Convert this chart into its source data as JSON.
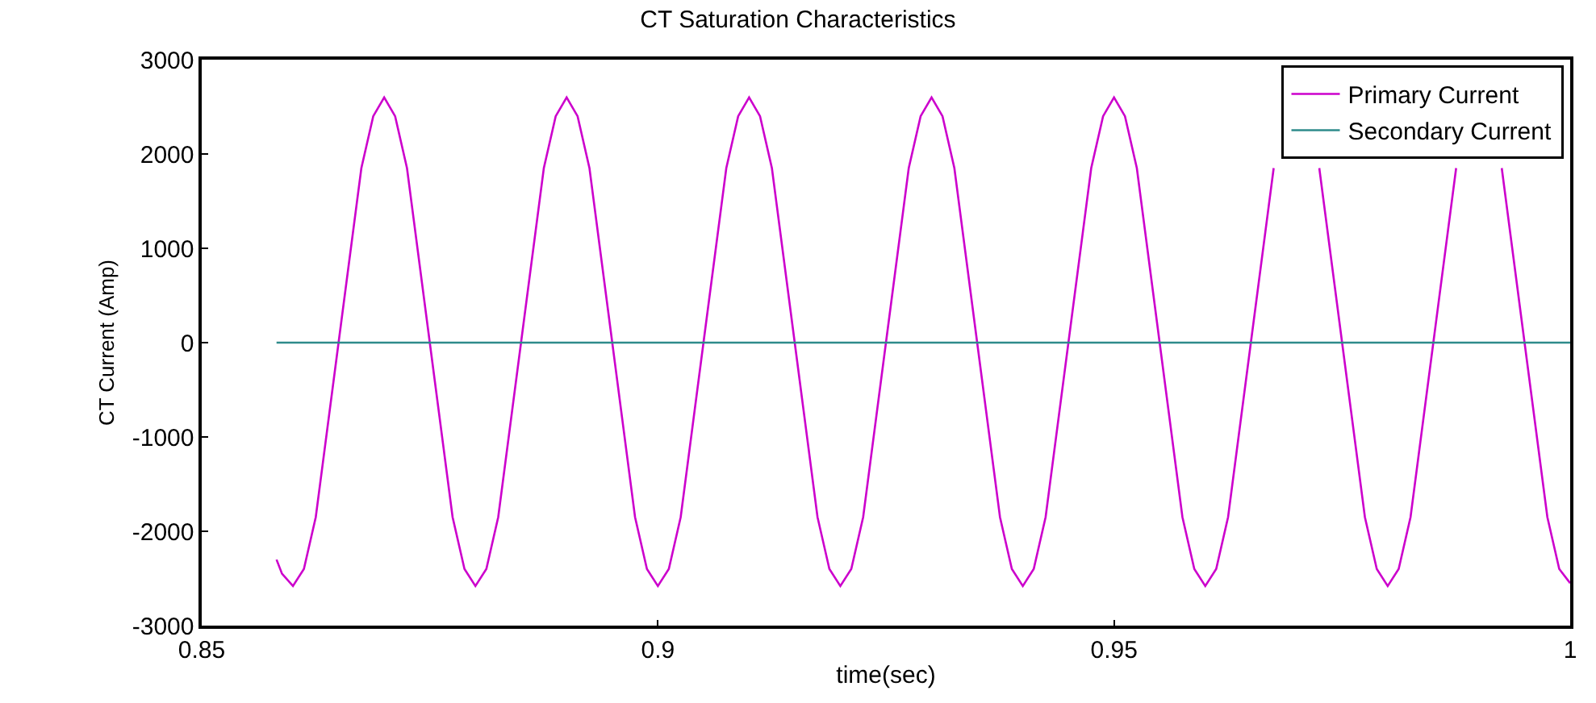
{
  "chart_data": {
    "type": "line",
    "title": "CT Saturation Characteristics",
    "xlabel": "time(sec)",
    "ylabel": "CT Current (Amp)",
    "xlim": [
      0.85,
      1
    ],
    "xticks": [
      0.85,
      0.9,
      0.95,
      1
    ],
    "ylim": [
      -3000,
      3000
    ],
    "yticks": [
      -3000,
      -2000,
      -1000,
      0,
      1000,
      2000,
      3000
    ],
    "legend": "top right",
    "marker": "none",
    "line_style": "solid",
    "series": [
      {
        "name": "Primary Current",
        "color": "#cc00cc",
        "x": [
          0.8582,
          0.8588,
          0.86,
          0.8612,
          0.8625,
          0.865,
          0.8675,
          0.8688,
          0.87,
          0.8712,
          0.8725,
          0.875,
          0.8775,
          0.8788,
          0.88,
          0.8812,
          0.8825,
          0.885,
          0.8875,
          0.8888,
          0.89,
          0.8912,
          0.8925,
          0.895,
          0.8975,
          0.8988,
          0.9,
          0.9012,
          0.9025,
          0.905,
          0.9075,
          0.9088,
          0.91,
          0.9112,
          0.9125,
          0.915,
          0.9175,
          0.9188,
          0.92,
          0.9212,
          0.9225,
          0.925,
          0.9275,
          0.9288,
          0.93,
          0.9312,
          0.9325,
          0.935,
          0.9375,
          0.9388,
          0.94,
          0.9412,
          0.9425,
          0.945,
          0.9475,
          0.9488,
          0.95,
          0.9512,
          0.9525,
          0.955,
          0.9575,
          0.9588,
          0.96,
          0.9612,
          0.9625,
          0.965,
          0.9675,
          0.9688,
          0.97,
          0.9712,
          0.9725,
          0.975,
          0.9775,
          0.9788,
          0.98,
          0.9812,
          0.9825,
          0.985,
          0.9875,
          0.9888,
          0.99,
          0.9912,
          0.9925,
          0.995,
          0.9975,
          0.9988,
          1.0
        ],
        "values": [
          -2300,
          -2450,
          -2580,
          -2400,
          -1850,
          0,
          1850,
          2400,
          2600,
          2400,
          1850,
          0,
          -1850,
          -2400,
          -2580,
          -2400,
          -1850,
          0,
          1850,
          2400,
          2600,
          2400,
          1850,
          0,
          -1850,
          -2400,
          -2580,
          -2400,
          -1850,
          0,
          1850,
          2400,
          2600,
          2400,
          1850,
          0,
          -1850,
          -2400,
          -2580,
          -2400,
          -1850,
          0,
          1850,
          2400,
          2600,
          2400,
          1850,
          0,
          -1850,
          -2400,
          -2580,
          -2400,
          -1850,
          0,
          1850,
          2400,
          2600,
          2400,
          1850,
          0,
          -1850,
          -2400,
          -2580,
          -2400,
          -1850,
          0,
          1850,
          null,
          null,
          null,
          1850,
          0,
          -1850,
          -2400,
          -2580,
          -2400,
          -1850,
          0,
          1850,
          null,
          null,
          null,
          1850,
          0,
          -1850,
          -2400,
          -2550
        ]
      },
      {
        "name": "Secondary Current",
        "color": "#2e8b8b",
        "x": [
          0.8582,
          0.9,
          0.95,
          1.0
        ],
        "values": [
          0,
          0,
          0,
          0
        ]
      }
    ]
  }
}
